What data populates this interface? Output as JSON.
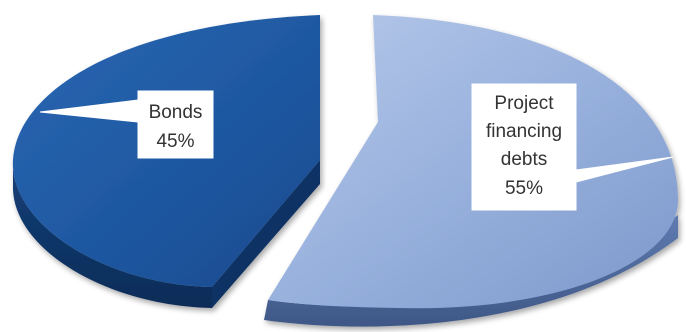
{
  "chart_data": {
    "type": "pie",
    "title": "",
    "slices": [
      {
        "label_lines": [
          "Bonds"
        ],
        "percent_label": "45%",
        "value": 45,
        "color": "#1f5aa3"
      },
      {
        "label_lines": [
          "Project",
          "financing",
          "debts"
        ],
        "percent_label": "55%",
        "value": 55,
        "color": "#8ba6d6"
      }
    ],
    "legend": "none",
    "style": "3d-exploded"
  }
}
